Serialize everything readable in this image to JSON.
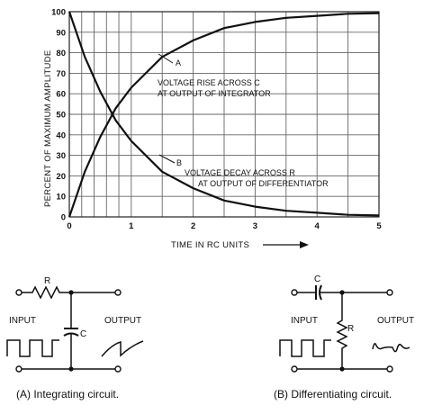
{
  "chart_data": {
    "type": "line",
    "title": "",
    "xlabel": "TIME IN RC UNITS",
    "ylabel": "PERCENT OF MAXIMUM AMPLITUDE",
    "xlim": [
      0,
      5
    ],
    "ylim": [
      0,
      100
    ],
    "xticks": [
      "0",
      "1",
      "2",
      "3",
      "4",
      "5"
    ],
    "yticks": [
      "0",
      "10",
      "20",
      "30",
      "40",
      "50",
      "60",
      "70",
      "80",
      "90",
      "100"
    ],
    "grid": true,
    "x": [
      0,
      0.25,
      0.5,
      0.75,
      1,
      1.5,
      2,
      2.5,
      3,
      3.5,
      4,
      4.5,
      5
    ],
    "series": [
      {
        "name": "A",
        "label": [
          "VOLTAGE RISE ACROSS C",
          "AT OUTPUT OF INTEGRATOR"
        ],
        "values": [
          0,
          22,
          39,
          53,
          63,
          78,
          86,
          92,
          95,
          97,
          98,
          99,
          99.3
        ]
      },
      {
        "name": "B",
        "label": [
          "VOLTAGE DECAY ACROSS R",
          "AT OUTPUT OF DIFFERENTIATOR"
        ],
        "values": [
          100,
          78,
          61,
          47,
          37,
          22,
          14,
          8,
          5,
          3,
          2,
          1,
          0.7
        ]
      }
    ]
  },
  "circuits": {
    "integrating": {
      "component_r": "R",
      "component_c": "C",
      "input_label": "INPUT",
      "output_label": "OUTPUT",
      "caption": "(A)  Integrating circuit."
    },
    "differentiating": {
      "component_c": "C",
      "component_r": "R",
      "input_label": "INPUT",
      "output_label": "OUTPUT",
      "caption": "(B)  Differentiating circuit."
    }
  }
}
